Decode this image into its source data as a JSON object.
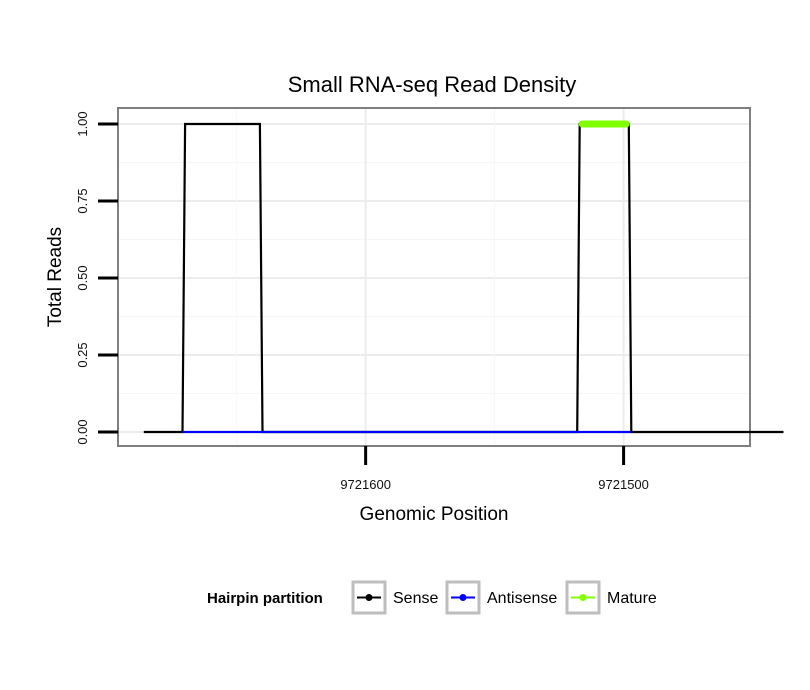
{
  "chart_data": {
    "type": "line",
    "title": "Small RNA-seq Read Density",
    "xlabel": "Genomic Position",
    "ylabel": "Total Reads",
    "x_reversed": true,
    "xlim": [
      9721451,
      9721696
    ],
    "ylim": [
      0,
      1
    ],
    "x_ticks": [
      9721600,
      9721500
    ],
    "x_tick_labels": [
      "9721600",
      "9721500"
    ],
    "y_ticks": [
      0,
      0.25,
      0.5,
      0.75,
      1
    ],
    "y_tick_labels": [
      "0.00",
      "0.25",
      "0.50",
      "0.75",
      "1.00"
    ],
    "grid": true,
    "series": [
      {
        "name": "Sense",
        "color": "#000000",
        "points": [
          [
            9721686,
            0
          ],
          [
            9721671,
            0
          ],
          [
            9721670,
            1
          ],
          [
            9721641,
            1
          ],
          [
            9721640,
            0
          ],
          [
            9721518,
            0
          ],
          [
            9721517,
            1
          ],
          [
            9721498,
            1
          ],
          [
            9721497,
            0
          ],
          [
            9721438,
            0
          ]
        ]
      },
      {
        "name": "Antisense",
        "color": "#0000ff",
        "points": [
          [
            9721671,
            0
          ],
          [
            9721640,
            0
          ],
          [
            9721518,
            0
          ],
          [
            9721497,
            0
          ]
        ]
      },
      {
        "name": "Mature",
        "color": "#7fff00",
        "points": [
          [
            9721516,
            1
          ],
          [
            9721499,
            1
          ]
        ]
      }
    ]
  },
  "legend": {
    "title": "Hairpin partition",
    "items": [
      {
        "label": "Sense",
        "color": "#000000"
      },
      {
        "label": "Antisense",
        "color": "#0000ff"
      },
      {
        "label": "Mature",
        "color": "#7fff00"
      }
    ]
  }
}
